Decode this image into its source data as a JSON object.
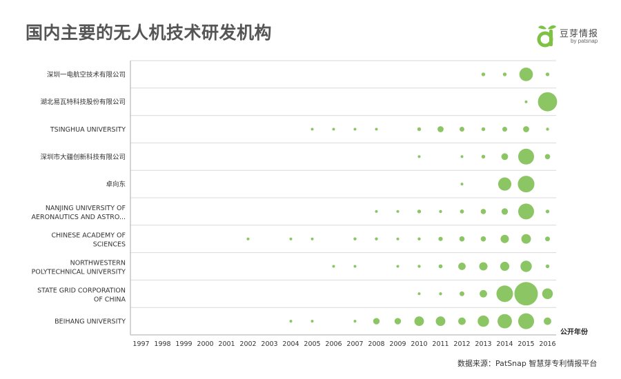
{
  "title": "国内主要的无人机技术研发机构",
  "logo": {
    "name": "豆芽情报",
    "tagline": "by patsnap",
    "color": "#7dc242"
  },
  "source": "数据来源：PatSnap 智慧芽专利情报平台",
  "colors": {
    "bubble": "#8cc563",
    "grid": "#d9d9d9",
    "axis": "#aaaaaa"
  },
  "chart_data": {
    "type": "bubble",
    "title": "",
    "xlabel": "公开年份",
    "ylabel": "",
    "x": [
      "1997",
      "1998",
      "1999",
      "2000",
      "2001",
      "2002",
      "2003",
      "2004",
      "2005",
      "2006",
      "2007",
      "2008",
      "2009",
      "2010",
      "2011",
      "2012",
      "2013",
      "2014",
      "2015",
      "2016"
    ],
    "categories": [
      "深圳一电航空技术有限公司",
      "湖北易瓦特科技股份有限公司",
      "TSINGHUA UNIVERSITY",
      "深圳市大疆创新科技有限公司",
      "卓向东",
      "NANJING UNIVERSITY OF\nAERONAUTICS AND ASTRO...",
      "CHINESE ACADEMY OF\nSCIENCES",
      "NORTHWESTERN\nPOLYTECHNICAL UNIVERSITY",
      "STATE GRID CORPORATION\nOF CHINA",
      "BEIHANG UNIVERSITY"
    ],
    "points": [
      {
        "category": 0,
        "x": "2013",
        "value": 3
      },
      {
        "category": 0,
        "x": "2014",
        "value": 3
      },
      {
        "category": 0,
        "x": "2015",
        "value": 40
      },
      {
        "category": 0,
        "x": "2016",
        "value": 3
      },
      {
        "category": 1,
        "x": "2015",
        "value": 1
      },
      {
        "category": 1,
        "x": "2016",
        "value": 80
      },
      {
        "category": 2,
        "x": "2005",
        "value": 1
      },
      {
        "category": 2,
        "x": "2006",
        "value": 1
      },
      {
        "category": 2,
        "x": "2007",
        "value": 1
      },
      {
        "category": 2,
        "x": "2008",
        "value": 1
      },
      {
        "category": 2,
        "x": "2010",
        "value": 3
      },
      {
        "category": 2,
        "x": "2011",
        "value": 8
      },
      {
        "category": 2,
        "x": "2012",
        "value": 5
      },
      {
        "category": 2,
        "x": "2013",
        "value": 3
      },
      {
        "category": 2,
        "x": "2014",
        "value": 5
      },
      {
        "category": 2,
        "x": "2015",
        "value": 8
      },
      {
        "category": 2,
        "x": "2016",
        "value": 2
      },
      {
        "category": 3,
        "x": "2010",
        "value": 1.5
      },
      {
        "category": 3,
        "x": "2012",
        "value": 1
      },
      {
        "category": 3,
        "x": "2013",
        "value": 3
      },
      {
        "category": 3,
        "x": "2014",
        "value": 10
      },
      {
        "category": 3,
        "x": "2015",
        "value": 55
      },
      {
        "category": 3,
        "x": "2016",
        "value": 6
      },
      {
        "category": 4,
        "x": "2012",
        "value": 1
      },
      {
        "category": 4,
        "x": "2014",
        "value": 38
      },
      {
        "category": 4,
        "x": "2015",
        "value": 60
      },
      {
        "category": 5,
        "x": "2008",
        "value": 1
      },
      {
        "category": 5,
        "x": "2009",
        "value": 1.5
      },
      {
        "category": 5,
        "x": "2010",
        "value": 3
      },
      {
        "category": 5,
        "x": "2011",
        "value": 2
      },
      {
        "category": 5,
        "x": "2012",
        "value": 3.5
      },
      {
        "category": 5,
        "x": "2013",
        "value": 6
      },
      {
        "category": 5,
        "x": "2014",
        "value": 9
      },
      {
        "category": 5,
        "x": "2015",
        "value": 55
      },
      {
        "category": 5,
        "x": "2016",
        "value": 3
      },
      {
        "category": 6,
        "x": "2002",
        "value": 1
      },
      {
        "category": 6,
        "x": "2004",
        "value": 1
      },
      {
        "category": 6,
        "x": "2005",
        "value": 1
      },
      {
        "category": 6,
        "x": "2007",
        "value": 2
      },
      {
        "category": 6,
        "x": "2008",
        "value": 2
      },
      {
        "category": 6,
        "x": "2009",
        "value": 1.5
      },
      {
        "category": 6,
        "x": "2010",
        "value": 2
      },
      {
        "category": 6,
        "x": "2011",
        "value": 4
      },
      {
        "category": 6,
        "x": "2012",
        "value": 6
      },
      {
        "category": 6,
        "x": "2013",
        "value": 6
      },
      {
        "category": 6,
        "x": "2014",
        "value": 15
      },
      {
        "category": 6,
        "x": "2015",
        "value": 20
      },
      {
        "category": 6,
        "x": "2016",
        "value": 5
      },
      {
        "category": 7,
        "x": "2006",
        "value": 1
      },
      {
        "category": 7,
        "x": "2007",
        "value": 1
      },
      {
        "category": 7,
        "x": "2009",
        "value": 1
      },
      {
        "category": 7,
        "x": "2010",
        "value": 2
      },
      {
        "category": 7,
        "x": "2011",
        "value": 3.5
      },
      {
        "category": 7,
        "x": "2012",
        "value": 12
      },
      {
        "category": 7,
        "x": "2013",
        "value": 15
      },
      {
        "category": 7,
        "x": "2014",
        "value": 18
      },
      {
        "category": 7,
        "x": "2015",
        "value": 28
      },
      {
        "category": 7,
        "x": "2016",
        "value": 3
      },
      {
        "category": 8,
        "x": "2010",
        "value": 1.5
      },
      {
        "category": 8,
        "x": "2011",
        "value": 2
      },
      {
        "category": 8,
        "x": "2012",
        "value": 5
      },
      {
        "category": 8,
        "x": "2013",
        "value": 12
      },
      {
        "category": 8,
        "x": "2014",
        "value": 60
      },
      {
        "category": 8,
        "x": "2015",
        "value": 120
      },
      {
        "category": 8,
        "x": "2016",
        "value": 25
      },
      {
        "category": 9,
        "x": "2004",
        "value": 1
      },
      {
        "category": 9,
        "x": "2005",
        "value": 1
      },
      {
        "category": 9,
        "x": "2007",
        "value": 1.5
      },
      {
        "category": 9,
        "x": "2008",
        "value": 9
      },
      {
        "category": 9,
        "x": "2009",
        "value": 9
      },
      {
        "category": 9,
        "x": "2010",
        "value": 20
      },
      {
        "category": 9,
        "x": "2011",
        "value": 20
      },
      {
        "category": 9,
        "x": "2012",
        "value": 12
      },
      {
        "category": 9,
        "x": "2013",
        "value": 28
      },
      {
        "category": 9,
        "x": "2014",
        "value": 45
      },
      {
        "category": 9,
        "x": "2015",
        "value": 55
      },
      {
        "category": 9,
        "x": "2016",
        "value": 12
      }
    ]
  }
}
